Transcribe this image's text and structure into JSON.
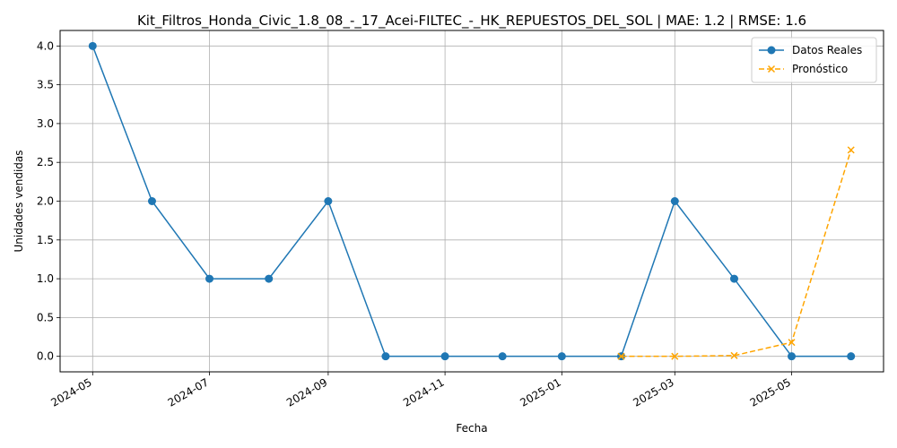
{
  "chart_data": {
    "type": "line",
    "title": "Kit_Filtros_Honda_Civic_1.8_08_-_17_Acei-FILTEC_-_HK_REPUESTOS_DEL_SOL | MAE: 1.2 | RMSE: 1.6",
    "xlabel": "Fecha",
    "ylabel": "Unidades vendidas",
    "x_ticks": [
      "2024-05",
      "2024-07",
      "2024-09",
      "2024-11",
      "2025-01",
      "2025-03",
      "2025-05"
    ],
    "y_ticks": [
      "0.0",
      "0.5",
      "1.0",
      "1.5",
      "2.0",
      "2.5",
      "3.0",
      "3.5",
      "4.0"
    ],
    "xlim": [
      "2024-04-14",
      "2025-06-18"
    ],
    "ylim": [
      -0.2,
      4.2
    ],
    "grid": true,
    "legend_position": "top-right",
    "series": [
      {
        "name": "Datos Reales",
        "color": "#1f77b4",
        "marker": "circle",
        "style": "solid",
        "x": [
          "2024-05-01",
          "2024-06-01",
          "2024-07-01",
          "2024-08-01",
          "2024-09-01",
          "2024-10-01",
          "2024-11-01",
          "2024-12-01",
          "2025-01-01",
          "2025-02-01",
          "2025-03-01",
          "2025-04-01",
          "2025-05-01",
          "2025-06-01"
        ],
        "values": [
          4,
          2,
          1,
          1,
          2,
          0,
          0,
          0,
          0,
          0,
          2,
          1,
          0,
          0
        ]
      },
      {
        "name": "Pronóstico",
        "color": "#ffa500",
        "marker": "x",
        "style": "dashed",
        "x": [
          "2025-02-01",
          "2025-03-01",
          "2025-04-01",
          "2025-05-01",
          "2025-06-01"
        ],
        "values": [
          0.0,
          0.0,
          0.01,
          0.18,
          2.66
        ]
      }
    ]
  }
}
